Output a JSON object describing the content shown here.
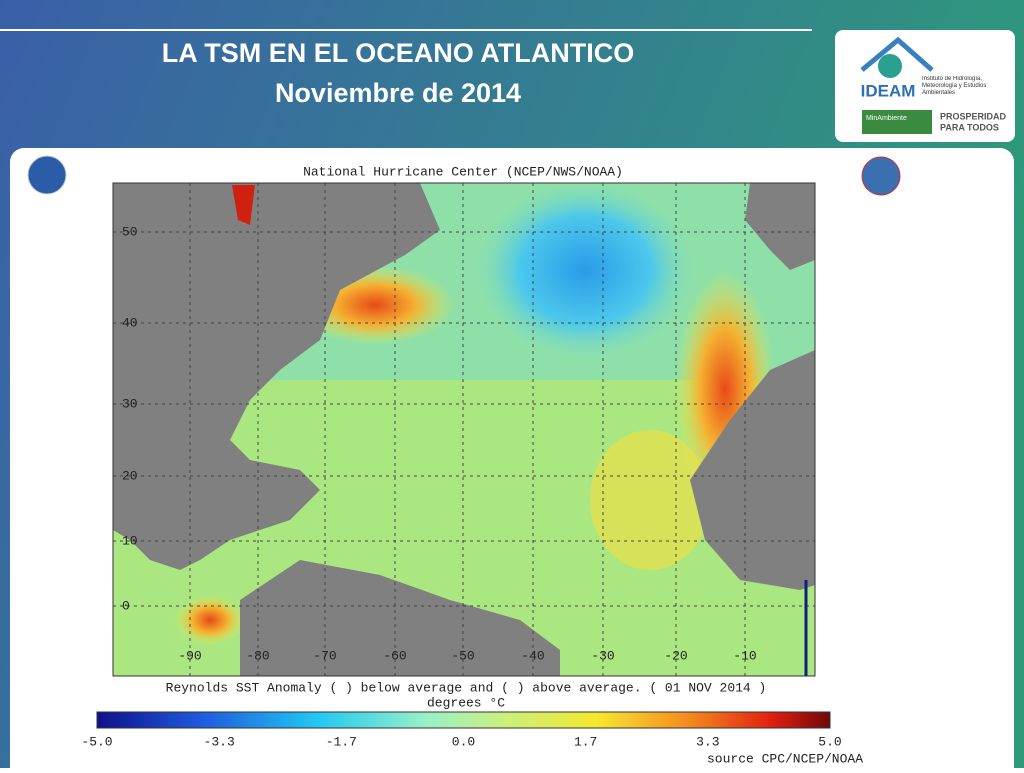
{
  "header": {
    "title_line1": "LA TSM EN EL OCEANO ATLANTICO",
    "title_line2": "Noviembre de 2014"
  },
  "logo": {
    "name": "IDEAM",
    "institute": "Instituto de Hidrología, Meteorología y Estudios Ambientales",
    "ministry": "MinAmbiente",
    "slogan_line1": "PROSPERIDAD",
    "slogan_line2": "PARA TODOS"
  },
  "map": {
    "title": "National Hurricane Center (NCEP/NWS/NOAA)",
    "latitude_labels": [
      "50",
      "40",
      "30",
      "20",
      "10",
      "0"
    ],
    "longitude_labels": [
      "-90",
      "-80",
      "-70",
      "-60",
      "-50",
      "-40",
      "-30",
      "-20",
      "-10"
    ],
    "caption_line1": "Reynolds SST Anomaly (  ) below average and (  ) above average. ( 01 NOV 2014 )",
    "caption_line2": "degrees °C",
    "colorbar_labels": [
      "-5.0",
      "-3.3",
      "-1.7",
      "0.0",
      "1.7",
      "3.3",
      "5.0"
    ],
    "source": "source   CPC/NCEP/NOAA"
  }
}
